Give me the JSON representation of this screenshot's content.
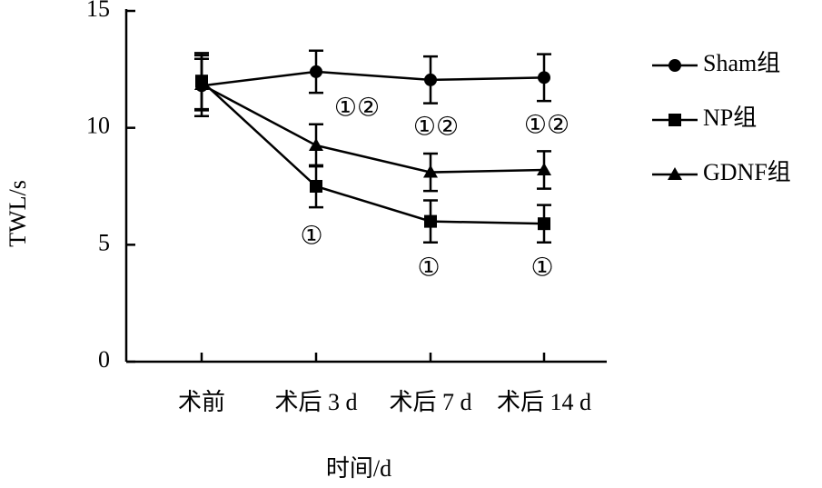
{
  "chart_data": {
    "type": "line",
    "x_label": "时间/d",
    "y_label": "TWL/s",
    "categories": [
      "术前",
      "术后 3 d",
      "术后 7 d",
      "术后 14 d"
    ],
    "series": [
      {
        "name": "Sham组",
        "color": "#000000",
        "marker": "circle",
        "values": [
          11.8,
          12.4,
          12.05,
          12.15
        ],
        "errors": [
          1.3,
          0.9,
          1.0,
          1.0
        ]
      },
      {
        "name": "NP组",
        "color": "#000000",
        "marker": "square",
        "values": [
          12.0,
          7.5,
          6.0,
          5.9
        ],
        "errors": [
          1.2,
          0.9,
          0.9,
          0.8
        ]
      },
      {
        "name": "GDNF组",
        "color": "#000000",
        "marker": "triangle",
        "values": [
          11.85,
          9.25,
          8.1,
          8.2
        ],
        "errors": [
          1.1,
          0.9,
          0.8,
          0.8
        ]
      }
    ],
    "annotations": [
      {
        "text": "①②",
        "category": 1
      },
      {
        "text": "①②",
        "category": 2
      },
      {
        "text": "①②",
        "category": 3
      },
      {
        "text": "①",
        "category": 1
      },
      {
        "text": "①",
        "category": 2
      },
      {
        "text": "①",
        "category": 3
      }
    ],
    "ylim": [
      0,
      15
    ],
    "yticks": [
      0,
      5,
      10,
      15
    ],
    "legend": "right"
  }
}
